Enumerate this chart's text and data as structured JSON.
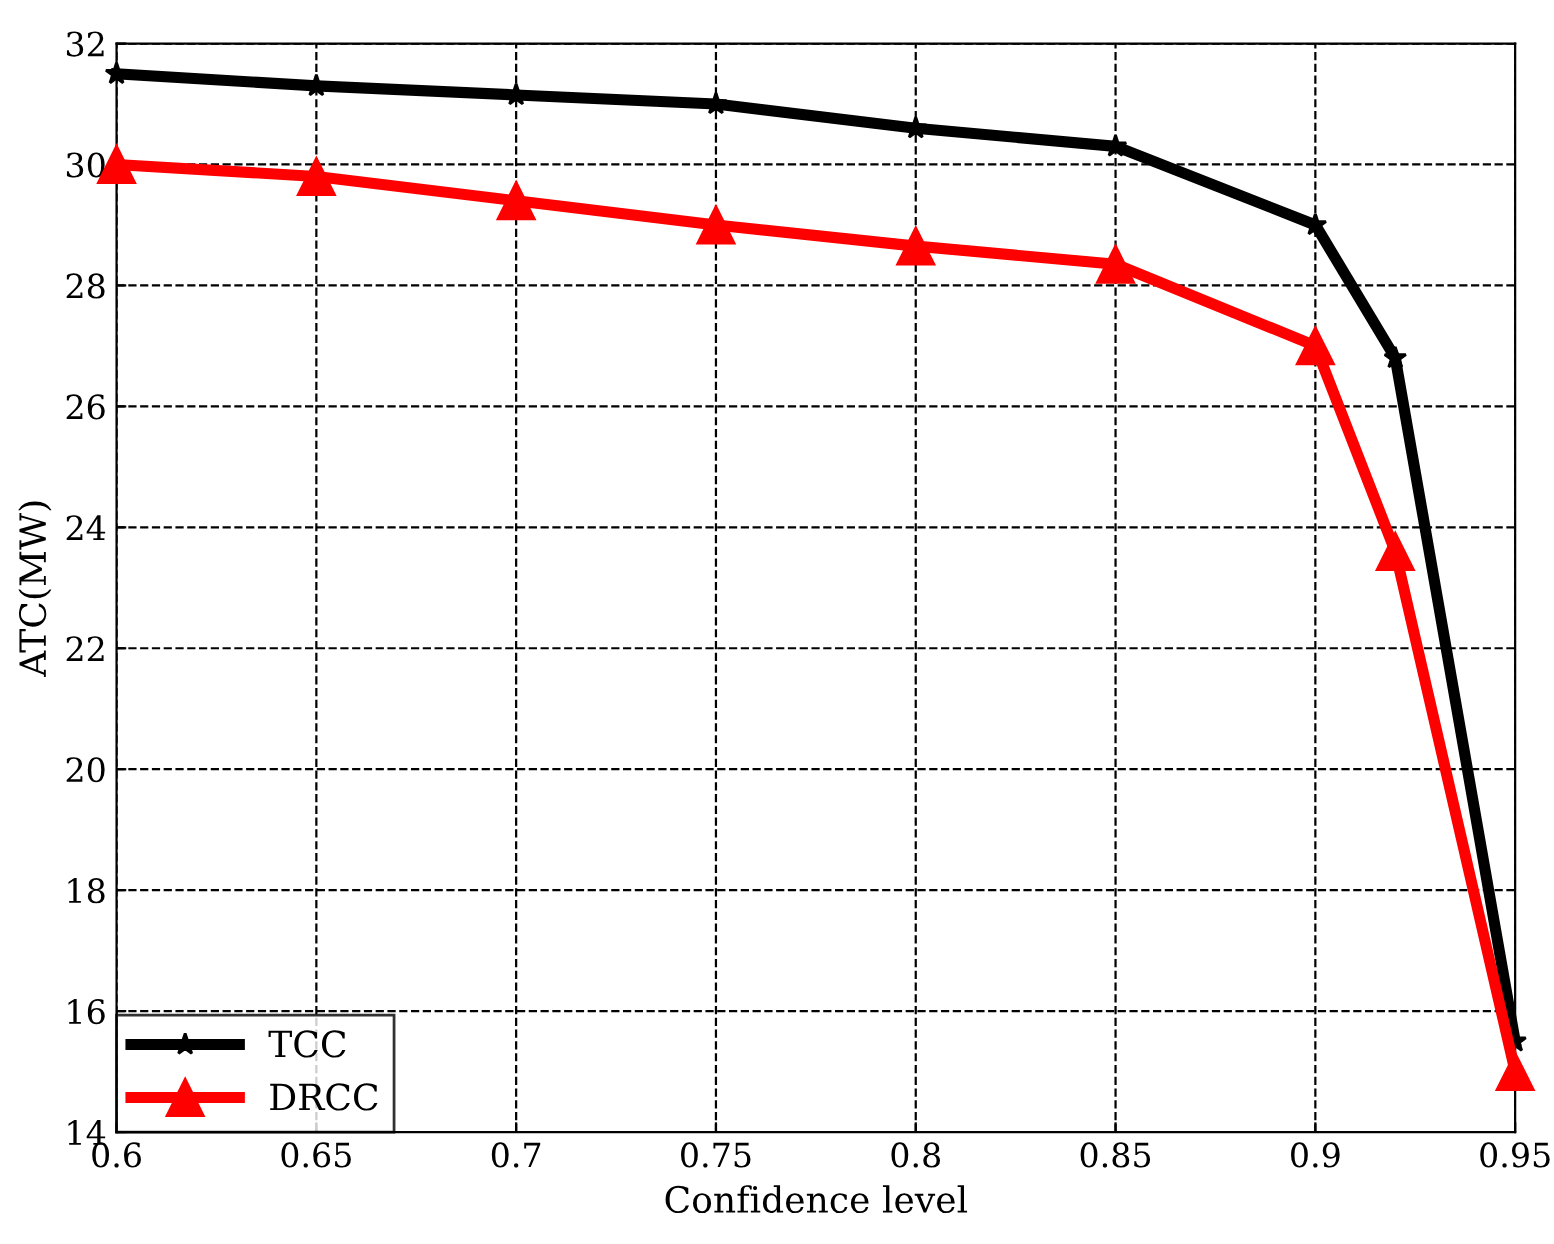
{
  "chart_data": {
    "type": "line",
    "xlabel": "Confidence level",
    "ylabel": "ATC(MW)",
    "x": [
      0.6,
      0.65,
      0.7,
      0.75,
      0.8,
      0.85,
      0.9,
      0.92,
      0.95
    ],
    "series": [
      {
        "name": "TCC",
        "color": "#000000",
        "marker": "star",
        "values": [
          31.5,
          31.3,
          31.15,
          31.0,
          30.6,
          30.3,
          29.0,
          26.8,
          15.5
        ]
      },
      {
        "name": "DRCC",
        "color": "#ff0000",
        "marker": "triangle",
        "values": [
          30.0,
          29.8,
          29.4,
          29.0,
          28.65,
          28.35,
          27.0,
          23.6,
          15.0
        ]
      }
    ],
    "xlim": [
      0.6,
      0.95
    ],
    "xticks": [
      0.6,
      0.65,
      0.7,
      0.75,
      0.8,
      0.85,
      0.9,
      0.95
    ],
    "ylim": [
      14,
      32
    ],
    "yticks": [
      14,
      16,
      18,
      20,
      22,
      24,
      26,
      28,
      30,
      32
    ],
    "grid": true,
    "legend": "bottom left",
    "line_style": "solid"
  }
}
